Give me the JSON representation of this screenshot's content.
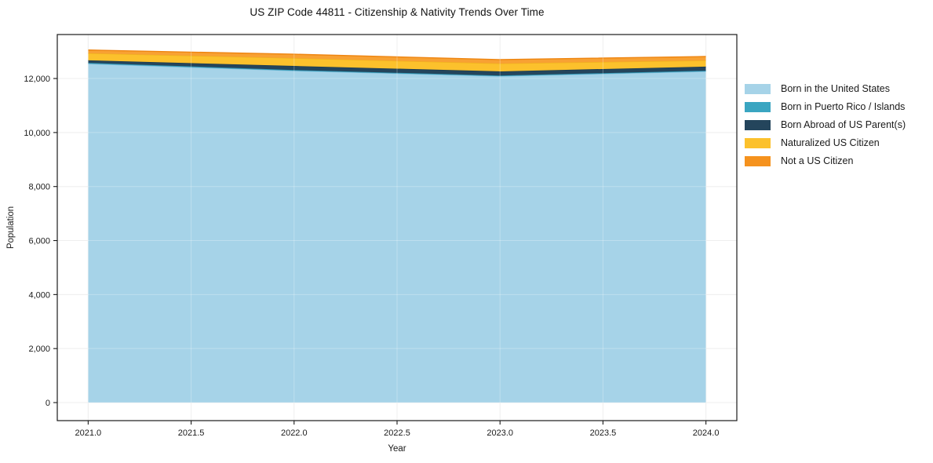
{
  "title": "US ZIP Code 44811 - Citizenship & Nativity Trends Over Time",
  "chart_data": {
    "type": "area",
    "stacked": true,
    "title": "US ZIP Code 44811 - Citizenship & Nativity Trends Over Time",
    "xlabel": "Year",
    "ylabel": "Population",
    "x": [
      2021,
      2022,
      2023,
      2024
    ],
    "series": [
      {
        "name": "Born in the United States",
        "color": "#A6D3E8",
        "edge": "#7CBCDA",
        "values": [
          12550,
          12290,
          12090,
          12265
        ]
      },
      {
        "name": "Born in Puerto Rico / Islands",
        "color": "#3AA5C1",
        "edge": "#2E94B0",
        "values": [
          30,
          25,
          20,
          25
        ]
      },
      {
        "name": "Born Abroad of US Parent(s)",
        "color": "#24455C",
        "edge": "#1C3A4E",
        "values": [
          95,
          150,
          155,
          150
        ]
      },
      {
        "name": "Naturalized US Citizen",
        "color": "#FCC12C",
        "edge": "#EFB31D",
        "values": [
          260,
          290,
          290,
          230
        ]
      },
      {
        "name": "Not a US Citizen",
        "color": "#F5921E",
        "fill": "#F8A133",
        "edge": "#EE8511",
        "values": [
          120,
          145,
          145,
          145
        ]
      }
    ],
    "totals": [
      13055,
      12900,
      12700,
      12815
    ],
    "xlim": [
      2020.85,
      2024.15
    ],
    "ylim": [
      -668,
      13629
    ],
    "xticks": {
      "values": [
        2021,
        2021.5,
        2022,
        2022.5,
        2023,
        2023.5,
        2024
      ],
      "labels": [
        "2021.0",
        "2021.5",
        "2022.0",
        "2022.5",
        "2023.0",
        "2023.5",
        "2024.0"
      ]
    },
    "yticks": {
      "values": [
        0,
        2000,
        4000,
        6000,
        8000,
        10000,
        12000
      ],
      "labels": [
        "0",
        "2,000",
        "4,000",
        "6,000",
        "8,000",
        "10,000",
        "12,000"
      ]
    },
    "grid": true,
    "legend_position": "right-outside"
  }
}
